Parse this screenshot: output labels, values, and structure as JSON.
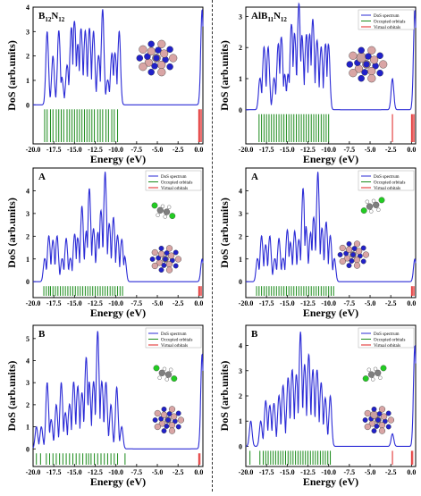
{
  "chart_data": [
    {
      "type": "line",
      "panel_label": "B",
      "panel_label_sub": "12",
      "panel_label_mid": "N",
      "panel_label_sub2": "12",
      "xlabel": "Energy (eV)",
      "ylabel": "DoS (arb.units)",
      "xlim": [
        -20,
        0.5
      ],
      "ylim": [
        -1.6,
        4.0
      ],
      "xticks": [
        "-20.0",
        "-17.5",
        "-15.0",
        "-12.5",
        "-10.0",
        "-7.5",
        "-5.0",
        "-2.5",
        "0.0"
      ],
      "yticks": [
        "0",
        "1",
        "2",
        "3",
        "4"
      ],
      "legend": {
        "entries": [],
        "placement": "none"
      },
      "peaks": [
        {
          "x": -18.3,
          "y": 3.0
        },
        {
          "x": -17.6,
          "y": 2.0
        },
        {
          "x": -16.9,
          "y": 3.0
        },
        {
          "x": -16.5,
          "y": 1.0
        },
        {
          "x": -15.9,
          "y": 1.6
        },
        {
          "x": -15.4,
          "y": 3.0
        },
        {
          "x": -15.0,
          "y": 3.2
        },
        {
          "x": -14.6,
          "y": 2.2
        },
        {
          "x": -14.2,
          "y": 3.0
        },
        {
          "x": -13.7,
          "y": 3.0
        },
        {
          "x": -13.2,
          "y": 3.1
        },
        {
          "x": -12.7,
          "y": 3.0
        },
        {
          "x": -12.1,
          "y": 2.0
        },
        {
          "x": -11.6,
          "y": 3.9
        },
        {
          "x": -11.0,
          "y": 1.0
        },
        {
          "x": -10.5,
          "y": 2.0
        },
        {
          "x": -10.1,
          "y": 2.0
        },
        {
          "x": -9.6,
          "y": 3.0
        },
        {
          "x": 0.4,
          "y": 3.9
        }
      ],
      "occupied_levels": [
        -18.6,
        -18.3,
        -17.9,
        -17.6,
        -17.2,
        -16.9,
        -16.6,
        -16.3,
        -15.9,
        -15.6,
        -15.3,
        -15.0,
        -14.7,
        -14.4,
        -14.1,
        -13.8,
        -13.5,
        -13.2,
        -12.9,
        -12.6,
        -12.2,
        -11.9,
        -11.6,
        -11.2,
        -10.9,
        -10.5,
        -10.2,
        -9.8
      ],
      "virtual_levels": [
        0.0,
        0.15,
        0.3
      ]
    },
    {
      "type": "line",
      "panel_label": "AlB",
      "panel_label_sub": "11",
      "panel_label_mid": "N",
      "panel_label_sub2": "12",
      "xlabel": "Energy (eV)",
      "ylabel": "DoS (arb.units)",
      "xlim": [
        -20,
        0.5
      ],
      "ylim": [
        -1.1,
        3.3
      ],
      "xticks": [
        "-20.0",
        "-17.5",
        "-15.0",
        "-12.5",
        "-10.0",
        "-7.5",
        "-5.0",
        "-2.5",
        "0.0"
      ],
      "yticks": [
        "0",
        "1",
        "2",
        "3"
      ],
      "legend": {
        "entries": [
          "DoS spectrum",
          "Occupied orbitals",
          "Virtual orbitals"
        ],
        "placement": "top-right"
      },
      "peaks": [
        {
          "x": -18.3,
          "y": 1.0
        },
        {
          "x": -17.8,
          "y": 2.0
        },
        {
          "x": -17.3,
          "y": 2.0
        },
        {
          "x": -16.6,
          "y": 1.0
        },
        {
          "x": -16.1,
          "y": 2.0
        },
        {
          "x": -15.7,
          "y": 2.2
        },
        {
          "x": -15.3,
          "y": 1.0
        },
        {
          "x": -14.9,
          "y": 1.0
        },
        {
          "x": -14.5,
          "y": 2.6
        },
        {
          "x": -14.1,
          "y": 2.3
        },
        {
          "x": -13.6,
          "y": 3.3
        },
        {
          "x": -13.2,
          "y": 2.2
        },
        {
          "x": -12.7,
          "y": 2.3
        },
        {
          "x": -12.3,
          "y": 2.2
        },
        {
          "x": -11.9,
          "y": 2.8
        },
        {
          "x": -11.4,
          "y": 2.2
        },
        {
          "x": -10.9,
          "y": 2.0
        },
        {
          "x": -10.4,
          "y": 2.0
        },
        {
          "x": -10.0,
          "y": 2.0
        },
        {
          "x": -2.3,
          "y": 1.0
        },
        {
          "x": 0.4,
          "y": 3.2
        }
      ],
      "occupied_levels": [
        -18.4,
        -18.1,
        -17.8,
        -17.5,
        -17.2,
        -16.9,
        -16.6,
        -16.3,
        -16.0,
        -15.7,
        -15.4,
        -15.1,
        -14.8,
        -14.5,
        -14.2,
        -13.9,
        -13.6,
        -13.3,
        -13.0,
        -12.7,
        -12.4,
        -12.1,
        -11.8,
        -11.5,
        -11.2,
        -10.9,
        -10.6,
        -10.3,
        -10.0
      ],
      "virtual_levels": [
        -2.3,
        0.0,
        0.15,
        0.3
      ]
    },
    {
      "type": "line",
      "panel_label": "A",
      "xlabel": "Energy (eV)",
      "ylabel": "DoS (arb.units)",
      "xlim": [
        -20,
        0.5
      ],
      "ylim": [
        -0.7,
        5.0
      ],
      "xticks": [
        "-20.0",
        "-17.5",
        "-15.0",
        "-12.5",
        "-10.0",
        "-7.5",
        "-5.0",
        "-2.5",
        "0.0"
      ],
      "yticks": [
        "0",
        "1",
        "2",
        "3",
        "4"
      ],
      "legend": {
        "entries": [
          "DoS spectrum",
          "Occupied orbitals",
          "Virtual orbitals"
        ],
        "placement": "top-right"
      },
      "peaks": [
        {
          "x": -18.6,
          "y": 1.0
        },
        {
          "x": -18.1,
          "y": 2.0
        },
        {
          "x": -17.6,
          "y": 1.8
        },
        {
          "x": -17.1,
          "y": 2.0
        },
        {
          "x": -16.5,
          "y": 1.0
        },
        {
          "x": -16.0,
          "y": 1.9
        },
        {
          "x": -15.5,
          "y": 1.0
        },
        {
          "x": -15.0,
          "y": 2.0
        },
        {
          "x": -14.6,
          "y": 1.8
        },
        {
          "x": -14.1,
          "y": 3.3
        },
        {
          "x": -13.6,
          "y": 2.0
        },
        {
          "x": -13.2,
          "y": 4.0
        },
        {
          "x": -12.7,
          "y": 2.3
        },
        {
          "x": -12.2,
          "y": 2.0
        },
        {
          "x": -11.8,
          "y": 3.0
        },
        {
          "x": -11.3,
          "y": 4.8
        },
        {
          "x": -10.8,
          "y": 2.5
        },
        {
          "x": -10.3,
          "y": 2.8
        },
        {
          "x": -9.8,
          "y": 2.0
        },
        {
          "x": -9.3,
          "y": 1.8
        },
        {
          "x": -8.9,
          "y": 1.0
        },
        {
          "x": 0.4,
          "y": 1.0
        }
      ],
      "occupied_levels": [
        -18.7,
        -18.4,
        -18.1,
        -17.9,
        -17.6,
        -17.3,
        -17.0,
        -16.7,
        -16.4,
        -16.1,
        -15.8,
        -15.5,
        -15.2,
        -14.9,
        -14.6,
        -14.3,
        -14.0,
        -13.7,
        -13.4,
        -13.1,
        -12.8,
        -12.5,
        -12.2,
        -11.9,
        -11.6,
        -11.3,
        -11.0,
        -10.7,
        -10.4,
        -10.1,
        -9.8,
        -9.5,
        -9.2
      ],
      "virtual_levels": [
        0.0,
        0.15,
        0.3
      ]
    },
    {
      "type": "line",
      "panel_label": "A",
      "xlabel": "Energy (eV)",
      "ylabel": "DoS (arb.units)",
      "xlim": [
        -20,
        0.5
      ],
      "ylim": [
        -0.7,
        5.0
      ],
      "xticks": [
        "-20.0",
        "-17.5",
        "-15.0",
        "-12.5",
        "-10.0",
        "-7.5",
        "-5.0",
        "-2.5",
        "0.0"
      ],
      "yticks": [
        "0",
        "1",
        "2",
        "3",
        "4"
      ],
      "legend": {
        "entries": [
          "DoS spectrum",
          "Occupied orbitals",
          "Virtual orbitals"
        ],
        "placement": "top-right"
      },
      "peaks": [
        {
          "x": -18.6,
          "y": 1.0
        },
        {
          "x": -18.1,
          "y": 2.0
        },
        {
          "x": -17.6,
          "y": 1.6
        },
        {
          "x": -17.1,
          "y": 2.0
        },
        {
          "x": -16.5,
          "y": 1.0
        },
        {
          "x": -16.0,
          "y": 1.9
        },
        {
          "x": -15.5,
          "y": 1.0
        },
        {
          "x": -15.0,
          "y": 2.2
        },
        {
          "x": -14.6,
          "y": 1.6
        },
        {
          "x": -14.1,
          "y": 2.2
        },
        {
          "x": -13.6,
          "y": 1.8
        },
        {
          "x": -13.1,
          "y": 4.0
        },
        {
          "x": -12.7,
          "y": 2.2
        },
        {
          "x": -12.2,
          "y": 2.0
        },
        {
          "x": -11.8,
          "y": 2.7
        },
        {
          "x": -11.3,
          "y": 4.8
        },
        {
          "x": -10.8,
          "y": 2.3
        },
        {
          "x": -10.3,
          "y": 2.6
        },
        {
          "x": -9.8,
          "y": 2.0
        },
        {
          "x": -9.3,
          "y": 1.0
        },
        {
          "x": 0.4,
          "y": 1.0
        }
      ],
      "occupied_levels": [
        -18.7,
        -18.4,
        -18.1,
        -17.8,
        -17.5,
        -17.2,
        -16.9,
        -16.6,
        -16.3,
        -16.0,
        -15.7,
        -15.4,
        -15.1,
        -14.8,
        -14.5,
        -14.2,
        -13.9,
        -13.6,
        -13.3,
        -13.0,
        -12.7,
        -12.4,
        -12.1,
        -11.8,
        -11.5,
        -11.2,
        -10.9,
        -10.6,
        -10.3,
        -10.0,
        -9.7,
        -9.4
      ],
      "virtual_levels": [
        0.0,
        0.15,
        0.3
      ]
    },
    {
      "type": "line",
      "panel_label": "B",
      "xlabel": "Energy (eV)",
      "ylabel": "DoS (arb.units)",
      "xlim": [
        -20,
        0.5
      ],
      "ylim": [
        -0.8,
        5.6
      ],
      "xticks": [
        "-20.0",
        "-17.5",
        "-15.0",
        "-12.5",
        "-10.0",
        "-7.5",
        "-5.0",
        "-2.5",
        "0.0"
      ],
      "yticks": [
        "0",
        "1",
        "2",
        "3",
        "4",
        "5"
      ],
      "legend": {
        "entries": [
          "DoS spectrum",
          "Occupied orbitals",
          "Virtual orbitals"
        ],
        "placement": "top-right"
      },
      "peaks": [
        {
          "x": -19.6,
          "y": 1.0
        },
        {
          "x": -19.0,
          "y": 1.0
        },
        {
          "x": -18.3,
          "y": 3.0
        },
        {
          "x": -17.8,
          "y": 1.3
        },
        {
          "x": -17.2,
          "y": 2.0
        },
        {
          "x": -16.6,
          "y": 3.0
        },
        {
          "x": -16.1,
          "y": 1.6
        },
        {
          "x": -15.6,
          "y": 2.0
        },
        {
          "x": -15.1,
          "y": 3.0
        },
        {
          "x": -14.6,
          "y": 2.8
        },
        {
          "x": -14.1,
          "y": 2.5
        },
        {
          "x": -13.6,
          "y": 4.0
        },
        {
          "x": -13.2,
          "y": 2.8
        },
        {
          "x": -12.7,
          "y": 3.0
        },
        {
          "x": -12.2,
          "y": 5.3
        },
        {
          "x": -11.7,
          "y": 3.0
        },
        {
          "x": -11.2,
          "y": 3.0
        },
        {
          "x": -10.6,
          "y": 2.0
        },
        {
          "x": -9.9,
          "y": 2.8
        },
        {
          "x": -9.3,
          "y": 1.0
        },
        {
          "x": 0.4,
          "y": 4.3
        }
      ],
      "occupied_levels": [
        -19.6,
        -19.1,
        -18.4,
        -18.0,
        -17.6,
        -17.2,
        -16.8,
        -16.4,
        -16.0,
        -15.6,
        -15.2,
        -14.8,
        -14.4,
        -14.0,
        -13.6,
        -13.3,
        -13.0,
        -12.6,
        -12.2,
        -11.8,
        -11.4,
        -11.0,
        -10.6,
        -10.2,
        -9.8,
        -8.9
      ],
      "virtual_levels": [
        0.0,
        0.15
      ]
    },
    {
      "type": "line",
      "panel_label": "B",
      "xlabel": "Energy (eV)",
      "ylabel": "DoS (arb.units)",
      "xlim": [
        -20,
        0.5
      ],
      "ylim": [
        -0.8,
        4.8
      ],
      "xticks": [
        "-20.0",
        "-17.5",
        "-15.0",
        "-12.5",
        "-10.0",
        "-7.5",
        "-5.0",
        "-2.5",
        "0.0"
      ],
      "yticks": [
        "0",
        "1",
        "2",
        "3",
        "4"
      ],
      "legend": {
        "entries": [
          "DoS spectrum",
          "Occupied orbitals",
          "Virtual orbitals"
        ],
        "placement": "top-right"
      },
      "peaks": [
        {
          "x": -19.4,
          "y": 1.0
        },
        {
          "x": -18.2,
          "y": 1.0
        },
        {
          "x": -17.6,
          "y": 1.8
        },
        {
          "x": -17.1,
          "y": 1.6
        },
        {
          "x": -16.6,
          "y": 1.7
        },
        {
          "x": -16.0,
          "y": 2.0
        },
        {
          "x": -15.5,
          "y": 2.4
        },
        {
          "x": -14.9,
          "y": 2.7
        },
        {
          "x": -14.4,
          "y": 3.0
        },
        {
          "x": -13.9,
          "y": 2.8
        },
        {
          "x": -13.4,
          "y": 4.5
        },
        {
          "x": -12.9,
          "y": 3.2
        },
        {
          "x": -12.4,
          "y": 3.6
        },
        {
          "x": -11.9,
          "y": 3.0
        },
        {
          "x": -11.4,
          "y": 3.0
        },
        {
          "x": -10.9,
          "y": 2.5
        },
        {
          "x": -10.4,
          "y": 1.9
        },
        {
          "x": -9.8,
          "y": 2.0
        },
        {
          "x": -2.3,
          "y": 0.5
        },
        {
          "x": 0.4,
          "y": 4.0
        }
      ],
      "occupied_levels": [
        -19.5,
        -18.3,
        -17.9,
        -17.6,
        -17.3,
        -17.0,
        -16.7,
        -16.4,
        -16.1,
        -15.8,
        -15.5,
        -15.2,
        -14.9,
        -14.6,
        -14.3,
        -14.0,
        -13.7,
        -13.4,
        -13.1,
        -12.8,
        -12.5,
        -12.2,
        -11.9,
        -11.6,
        -11.3,
        -11.0,
        -10.7,
        -10.4,
        -10.1,
        -9.8
      ],
      "virtual_levels": [
        -2.3,
        0.0,
        0.15
      ]
    }
  ],
  "colors": {
    "dos_line": "#2b2bd6",
    "occupied": "#1a8a1a",
    "virtual": "#e02020",
    "axis": "#000000",
    "boron": "#d9a5a5",
    "nitrogen": "#2121c9",
    "aluminum": "#c9a0a0",
    "chlorine": "#22cc22",
    "carbon": "#7f7f7f",
    "hydrogen": "#ffffff"
  }
}
